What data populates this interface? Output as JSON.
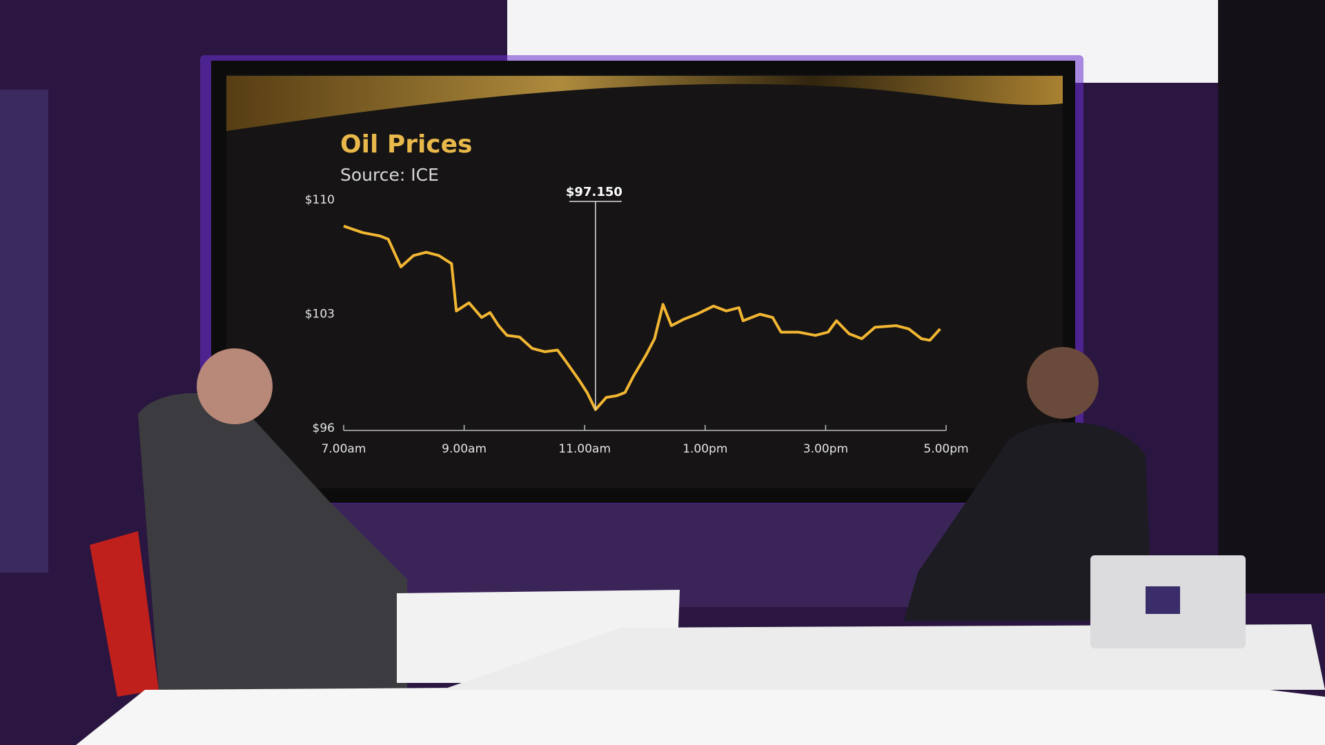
{
  "chart_data": {
    "type": "line",
    "title": "Oil Prices",
    "subtitle": "Source: ICE",
    "color": "#f2b632",
    "x": [
      7.0,
      7.32,
      7.6,
      7.74,
      7.95,
      8.16,
      8.37,
      8.58,
      8.79,
      8.87,
      9.08,
      9.29,
      9.43,
      9.57,
      9.71,
      9.92,
      10.13,
      10.34,
      10.55,
      10.69,
      10.9,
      11.04,
      11.18,
      11.36,
      11.53,
      11.67,
      11.81,
      12.02,
      12.16,
      12.3,
      12.44,
      12.65,
      12.86,
      13.14,
      13.35,
      13.56,
      13.63,
      13.91,
      14.12,
      14.26,
      14.55,
      14.83,
      15.04,
      15.18,
      15.39,
      15.6,
      15.82,
      16.17,
      16.38,
      16.59,
      16.73,
      16.9
    ],
    "values": [
      108.4,
      108.0,
      107.8,
      107.6,
      105.9,
      106.6,
      106.8,
      106.6,
      106.1,
      103.2,
      103.7,
      102.8,
      103.1,
      102.3,
      101.7,
      101.6,
      100.9,
      100.7,
      100.8,
      100.1,
      99.0,
      98.2,
      97.15,
      97.9,
      98.0,
      98.2,
      99.2,
      100.5,
      101.5,
      103.6,
      102.3,
      102.7,
      103.0,
      103.5,
      103.2,
      103.4,
      102.6,
      103.0,
      102.8,
      101.9,
      101.9,
      101.7,
      101.9,
      102.6,
      101.8,
      101.5,
      102.2,
      102.3,
      102.1,
      101.5,
      101.4,
      102.1
    ],
    "xlim": [
      7,
      17
    ],
    "xticks": [
      {
        "value": 7,
        "label": "7.00am"
      },
      {
        "value": 9,
        "label": "9.00am"
      },
      {
        "value": 11,
        "label": "11.00am"
      },
      {
        "value": 13,
        "label": "1.00pm"
      },
      {
        "value": 15,
        "label": "3.00pm"
      },
      {
        "value": 17,
        "label": "5.00pm"
      }
    ],
    "ylim": [
      96,
      110
    ],
    "yticks": [
      {
        "value": 96,
        "label": "$96"
      },
      {
        "value": 103,
        "label": "$103"
      },
      {
        "value": 110,
        "label": "$110"
      }
    ],
    "annotations": [
      {
        "x": 11.18,
        "y": 97.15,
        "label": "$97.150"
      }
    ]
  }
}
